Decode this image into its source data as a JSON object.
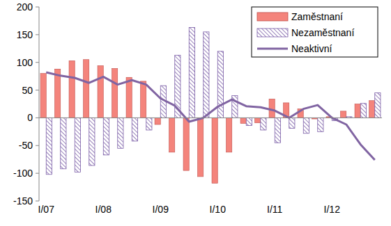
{
  "chart_data": {
    "type": "bar",
    "categories": [
      "I/07",
      null,
      null,
      null,
      "I/08",
      null,
      null,
      null,
      "I/09",
      null,
      null,
      null,
      "I/10",
      null,
      null,
      null,
      "I/11",
      null,
      null,
      null,
      "I/12",
      null,
      null,
      null
    ],
    "series": [
      {
        "name": "Zaměstnaní",
        "color": "#f4847c",
        "values": [
          80,
          88,
          103,
          105,
          94,
          89,
          73,
          66,
          -12,
          -62,
          -95,
          -106,
          -118,
          -62,
          -10,
          -9,
          34,
          27,
          16,
          -2,
          2,
          12,
          25,
          31
        ]
      },
      {
        "name": "Nezaměstnaní",
        "color": "#7b5ea7",
        "values": [
          -102,
          -92,
          -98,
          -86,
          -67,
          -55,
          -42,
          -22,
          58,
          113,
          163,
          155,
          120,
          40,
          -14,
          -22,
          -45,
          -19,
          -28,
          -25,
          -5,
          2,
          26,
          45
        ]
      },
      {
        "name": "Neaktivní",
        "type": "line",
        "color": "#8064a2",
        "values": [
          82,
          76,
          72,
          63,
          74,
          60,
          68,
          60,
          35,
          22,
          -7,
          0,
          20,
          33,
          21,
          19,
          13,
          0,
          16,
          23,
          0,
          -12,
          -48,
          -76
        ]
      }
    ],
    "ylim": [
      -150,
      200
    ],
    "yticks": [
      -150,
      -100,
      -50,
      0,
      50,
      100,
      150,
      200
    ],
    "grid": false,
    "legend": "top-right"
  }
}
